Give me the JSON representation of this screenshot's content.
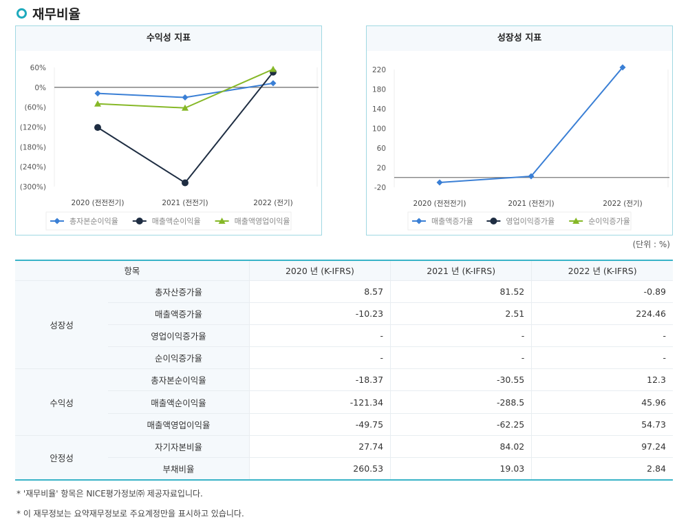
{
  "section_title": "재무비율",
  "unit_label": "(단위 : %)",
  "chart_data": [
    {
      "type": "line",
      "title": "수익성 지표",
      "categories": [
        "2020 (전전전기)",
        "2021 (전전기)",
        "2022 (전기)"
      ],
      "yticks": [
        "60%",
        "0%",
        "(60%)",
        "(120%)",
        "(180%)",
        "(240%)",
        "(300%)"
      ],
      "ylim": [
        -300,
        60
      ],
      "legend_position": "bottom",
      "series": [
        {
          "name": "총자본순이익율",
          "values": [
            -18.37,
            -30.55,
            12.3
          ],
          "color": "#3a7fd5",
          "marker": "diamond"
        },
        {
          "name": "매출액순이익율",
          "values": [
            -121.34,
            -288.5,
            45.96
          ],
          "color": "#1e2d42",
          "marker": "circle"
        },
        {
          "name": "매출액영업이익율",
          "values": [
            -49.75,
            -62.25,
            54.73
          ],
          "color": "#86b827",
          "marker": "triangle"
        }
      ]
    },
    {
      "type": "line",
      "title": "성장성 지표",
      "categories": [
        "2020 (전전전기)",
        "2021 (전전기)",
        "2022 (전기)"
      ],
      "yticks": [
        "220",
        "180",
        "140",
        "100",
        "60",
        "20",
        "-20"
      ],
      "ylim": [
        -20,
        220
      ],
      "legend_position": "bottom",
      "series": [
        {
          "name": "매출액증가율",
          "values": [
            -10.23,
            2.51,
            224.46
          ],
          "color": "#3a7fd5",
          "marker": "diamond"
        },
        {
          "name": "영업이익증가율",
          "values": [
            null,
            null,
            null
          ],
          "color": "#1e2d42",
          "marker": "circle"
        },
        {
          "name": "순이익증가율",
          "values": [
            null,
            null,
            null
          ],
          "color": "#86b827",
          "marker": "triangle"
        }
      ]
    }
  ],
  "table": {
    "headers": [
      "항목",
      "2020 년 (K-IFRS)",
      "2021 년 (K-IFRS)",
      "2022 년 (K-IFRS)"
    ],
    "groups": [
      {
        "name": "성장성",
        "rows": [
          {
            "item": "총자산증가율",
            "values": [
              "8.57",
              "81.52",
              "-0.89"
            ]
          },
          {
            "item": "매출액증가율",
            "values": [
              "-10.23",
              "2.51",
              "224.46"
            ]
          },
          {
            "item": "영업이익증가율",
            "values": [
              "-",
              "-",
              "-"
            ]
          },
          {
            "item": "순이익증가율",
            "values": [
              "-",
              "-",
              "-"
            ]
          }
        ]
      },
      {
        "name": "수익성",
        "rows": [
          {
            "item": "총자본순이익율",
            "values": [
              "-18.37",
              "-30.55",
              "12.3"
            ]
          },
          {
            "item": "매출액순이익율",
            "values": [
              "-121.34",
              "-288.5",
              "45.96"
            ]
          },
          {
            "item": "매출액영업이익율",
            "values": [
              "-49.75",
              "-62.25",
              "54.73"
            ]
          }
        ]
      },
      {
        "name": "안정성",
        "rows": [
          {
            "item": "자기자본비율",
            "values": [
              "27.74",
              "84.02",
              "97.24"
            ]
          },
          {
            "item": "부채비율",
            "values": [
              "260.53",
              "19.03",
              "2.84"
            ]
          }
        ]
      }
    ]
  },
  "notes": [
    "* '재무비율' 항목은 NICE평가정보㈜ 제공자료입니다.",
    "* 이 재무정보는 요약재무정보로 주요계정만을 표시하고 있습니다."
  ]
}
